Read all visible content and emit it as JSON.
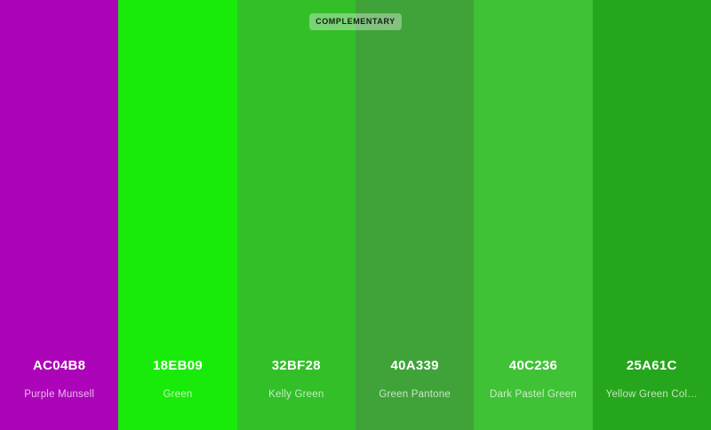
{
  "tag_label": "COMPLEMENTARY",
  "swatches": [
    {
      "hex": "AC04B8",
      "name": "Purple Munsell",
      "color": "#AC04B8"
    },
    {
      "hex": "18EB09",
      "name": "Green",
      "color": "#18EB09"
    },
    {
      "hex": "32BF28",
      "name": "Kelly Green",
      "color": "#32BF28"
    },
    {
      "hex": "40A339",
      "name": "Green Pantone",
      "color": "#40A339"
    },
    {
      "hex": "40C236",
      "name": "Dark Pastel Green",
      "color": "#40C236"
    },
    {
      "hex": "25A61C",
      "name": "Yellow Green Col…",
      "color": "#25A61C"
    }
  ]
}
